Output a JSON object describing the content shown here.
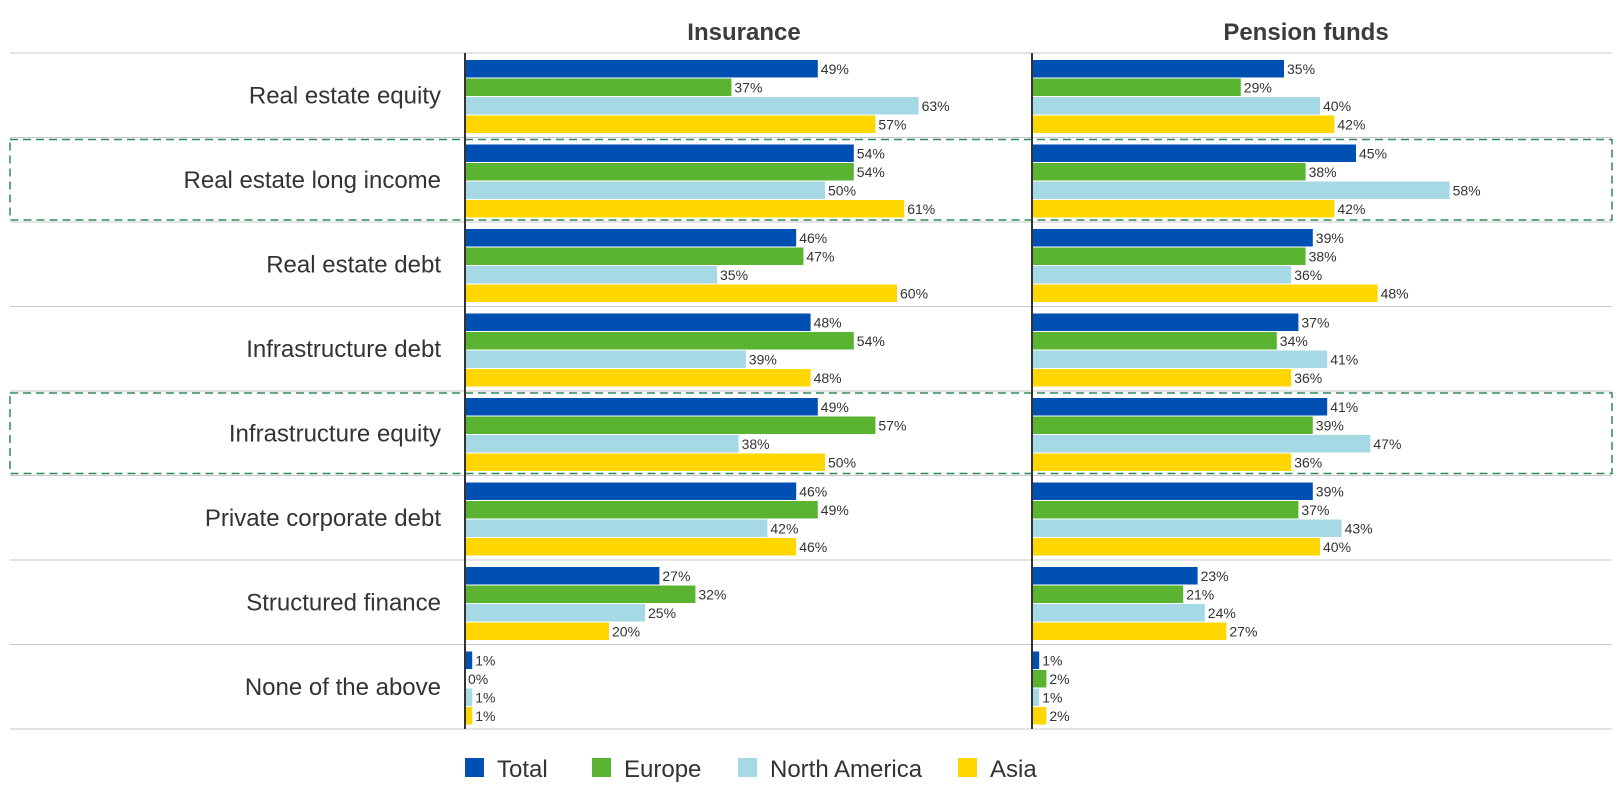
{
  "chart_data": {
    "type": "bar",
    "orientation": "horizontal",
    "panels": [
      "Insurance",
      "Pension funds"
    ],
    "categories": [
      "Real estate equity",
      "Real estate long income",
      "Real estate debt",
      "Infrastructure debt",
      "Infrastructure equity",
      "Private corporate debt",
      "Structured finance",
      "None of the above"
    ],
    "highlighted_categories": [
      "Real estate long income",
      "Infrastructure equity"
    ],
    "series_colors": [
      "#0050b4",
      "#5ab432",
      "#a5d9e6",
      "#ffd700"
    ],
    "highlight_color": "#2e8b57",
    "series": [
      {
        "name": "Total",
        "values": {
          "Insurance": [
            49,
            54,
            46,
            48,
            49,
            46,
            27,
            1
          ],
          "Pension funds": [
            35,
            45,
            39,
            37,
            41,
            39,
            23,
            1
          ]
        }
      },
      {
        "name": "Europe",
        "values": {
          "Insurance": [
            37,
            54,
            47,
            54,
            57,
            49,
            32,
            0
          ],
          "Pension funds": [
            29,
            38,
            38,
            34,
            39,
            37,
            21,
            2
          ]
        }
      },
      {
        "name": "North America",
        "values": {
          "Insurance": [
            63,
            50,
            35,
            39,
            38,
            42,
            25,
            1
          ],
          "Pension funds": [
            40,
            58,
            36,
            41,
            47,
            43,
            24,
            1
          ]
        }
      },
      {
        "name": "Asia",
        "values": {
          "Insurance": [
            57,
            61,
            60,
            48,
            50,
            46,
            20,
            1
          ],
          "Pension funds": [
            42,
            42,
            48,
            36,
            36,
            40,
            27,
            2
          ]
        }
      }
    ],
    "value_suffix": "%",
    "xlim": [
      0,
      100
    ],
    "legend_position": "bottom",
    "grid": false
  }
}
